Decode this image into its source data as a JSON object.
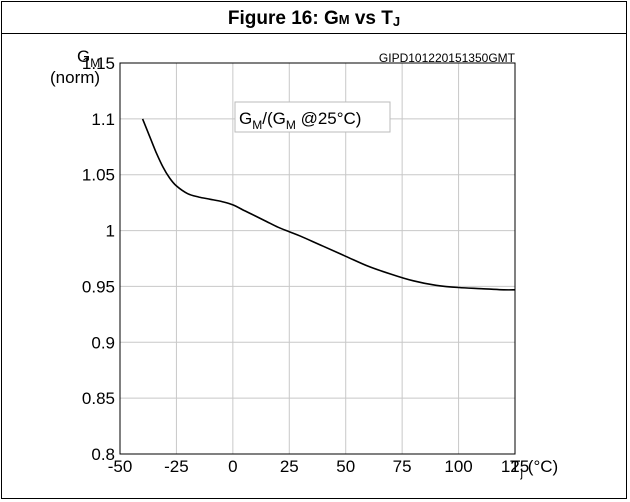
{
  "figure": {
    "title_prefix": "Figure 16: G",
    "title_sub1": "M",
    "title_mid": " vs T",
    "title_sub2": "J"
  },
  "chart_data": {
    "type": "line",
    "code_label": "GIPD101220151350GMT",
    "ylabel_main": "G",
    "ylabel_sub": "M",
    "ylabel_unit": "(norm)",
    "xlabel_main": "T",
    "xlabel_sub": "j",
    "xlabel_unit": " (°C)",
    "legend": {
      "part1": "G",
      "part1_sub": "M",
      "part2": "/(G",
      "part2_sub": "M",
      "part3": " @25°C)"
    },
    "xlim": [
      -50,
      125
    ],
    "ylim": [
      0.8,
      1.15
    ],
    "x_ticks": [
      {
        "v": -50,
        "label": "-50"
      },
      {
        "v": -25,
        "label": "-25"
      },
      {
        "v": 0,
        "label": "0"
      },
      {
        "v": 25,
        "label": "25"
      },
      {
        "v": 50,
        "label": "50"
      },
      {
        "v": 75,
        "label": "75"
      },
      {
        "v": 100,
        "label": "100"
      },
      {
        "v": 125,
        "label": "125"
      }
    ],
    "y_ticks": [
      {
        "v": 0.8,
        "label": "0.8"
      },
      {
        "v": 0.85,
        "label": "0.85"
      },
      {
        "v": 0.9,
        "label": "0.9"
      },
      {
        "v": 0.95,
        "label": "0.95"
      },
      {
        "v": 1.0,
        "label": "1"
      },
      {
        "v": 1.05,
        "label": "1.05"
      },
      {
        "v": 1.1,
        "label": "1.1"
      },
      {
        "v": 1.15,
        "label": "1.15"
      }
    ],
    "grid": true,
    "series": [
      {
        "x": [
          -40,
          -37,
          -34,
          -31,
          -28,
          -25,
          -20,
          -15,
          -10,
          -5,
          0,
          5,
          10,
          15,
          20,
          25,
          30,
          40,
          50,
          60,
          70,
          80,
          90,
          100,
          110,
          120,
          125
        ],
        "y": [
          1.1,
          1.085,
          1.07,
          1.057,
          1.047,
          1.04,
          1.033,
          1.03,
          1.028,
          1.026,
          1.023,
          1.018,
          1.013,
          1.008,
          1.003,
          0.999,
          0.995,
          0.986,
          0.977,
          0.968,
          0.961,
          0.955,
          0.951,
          0.949,
          0.948,
          0.947,
          0.947
        ]
      }
    ]
  }
}
